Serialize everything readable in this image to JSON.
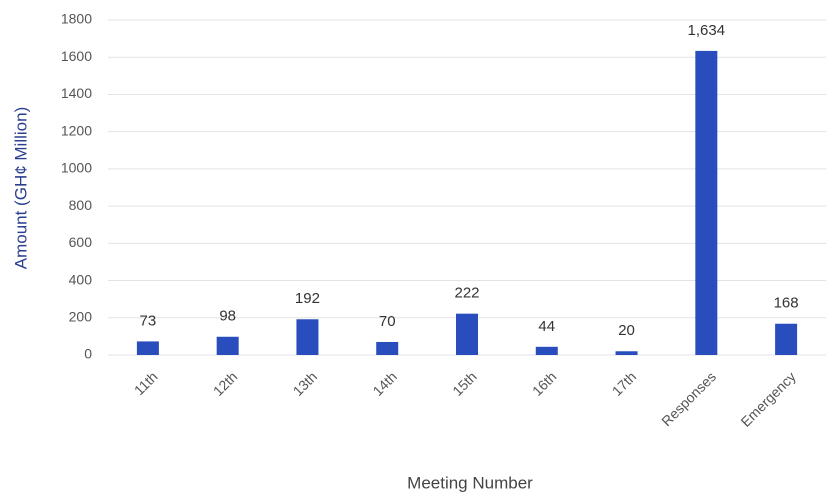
{
  "chart_data": {
    "type": "bar",
    "categories": [
      "11th",
      "12th",
      "13th",
      "14th",
      "15th",
      "16th",
      "17th",
      "Responses",
      "Emergency"
    ],
    "values": [
      73,
      98,
      192,
      70,
      222,
      44,
      20,
      1634,
      168
    ],
    "value_labels": [
      "73",
      "98",
      "192",
      "70",
      "222",
      "44",
      "20",
      "1,634",
      "168"
    ],
    "color": "#2a4dbd",
    "ylim": [
      0,
      1800
    ],
    "yticks": [
      0,
      200,
      400,
      600,
      800,
      1000,
      1200,
      1400,
      1600,
      1800
    ],
    "grid": true,
    "y_label": "Amount (GH¢ Million)",
    "x_label": "Meeting Number"
  }
}
